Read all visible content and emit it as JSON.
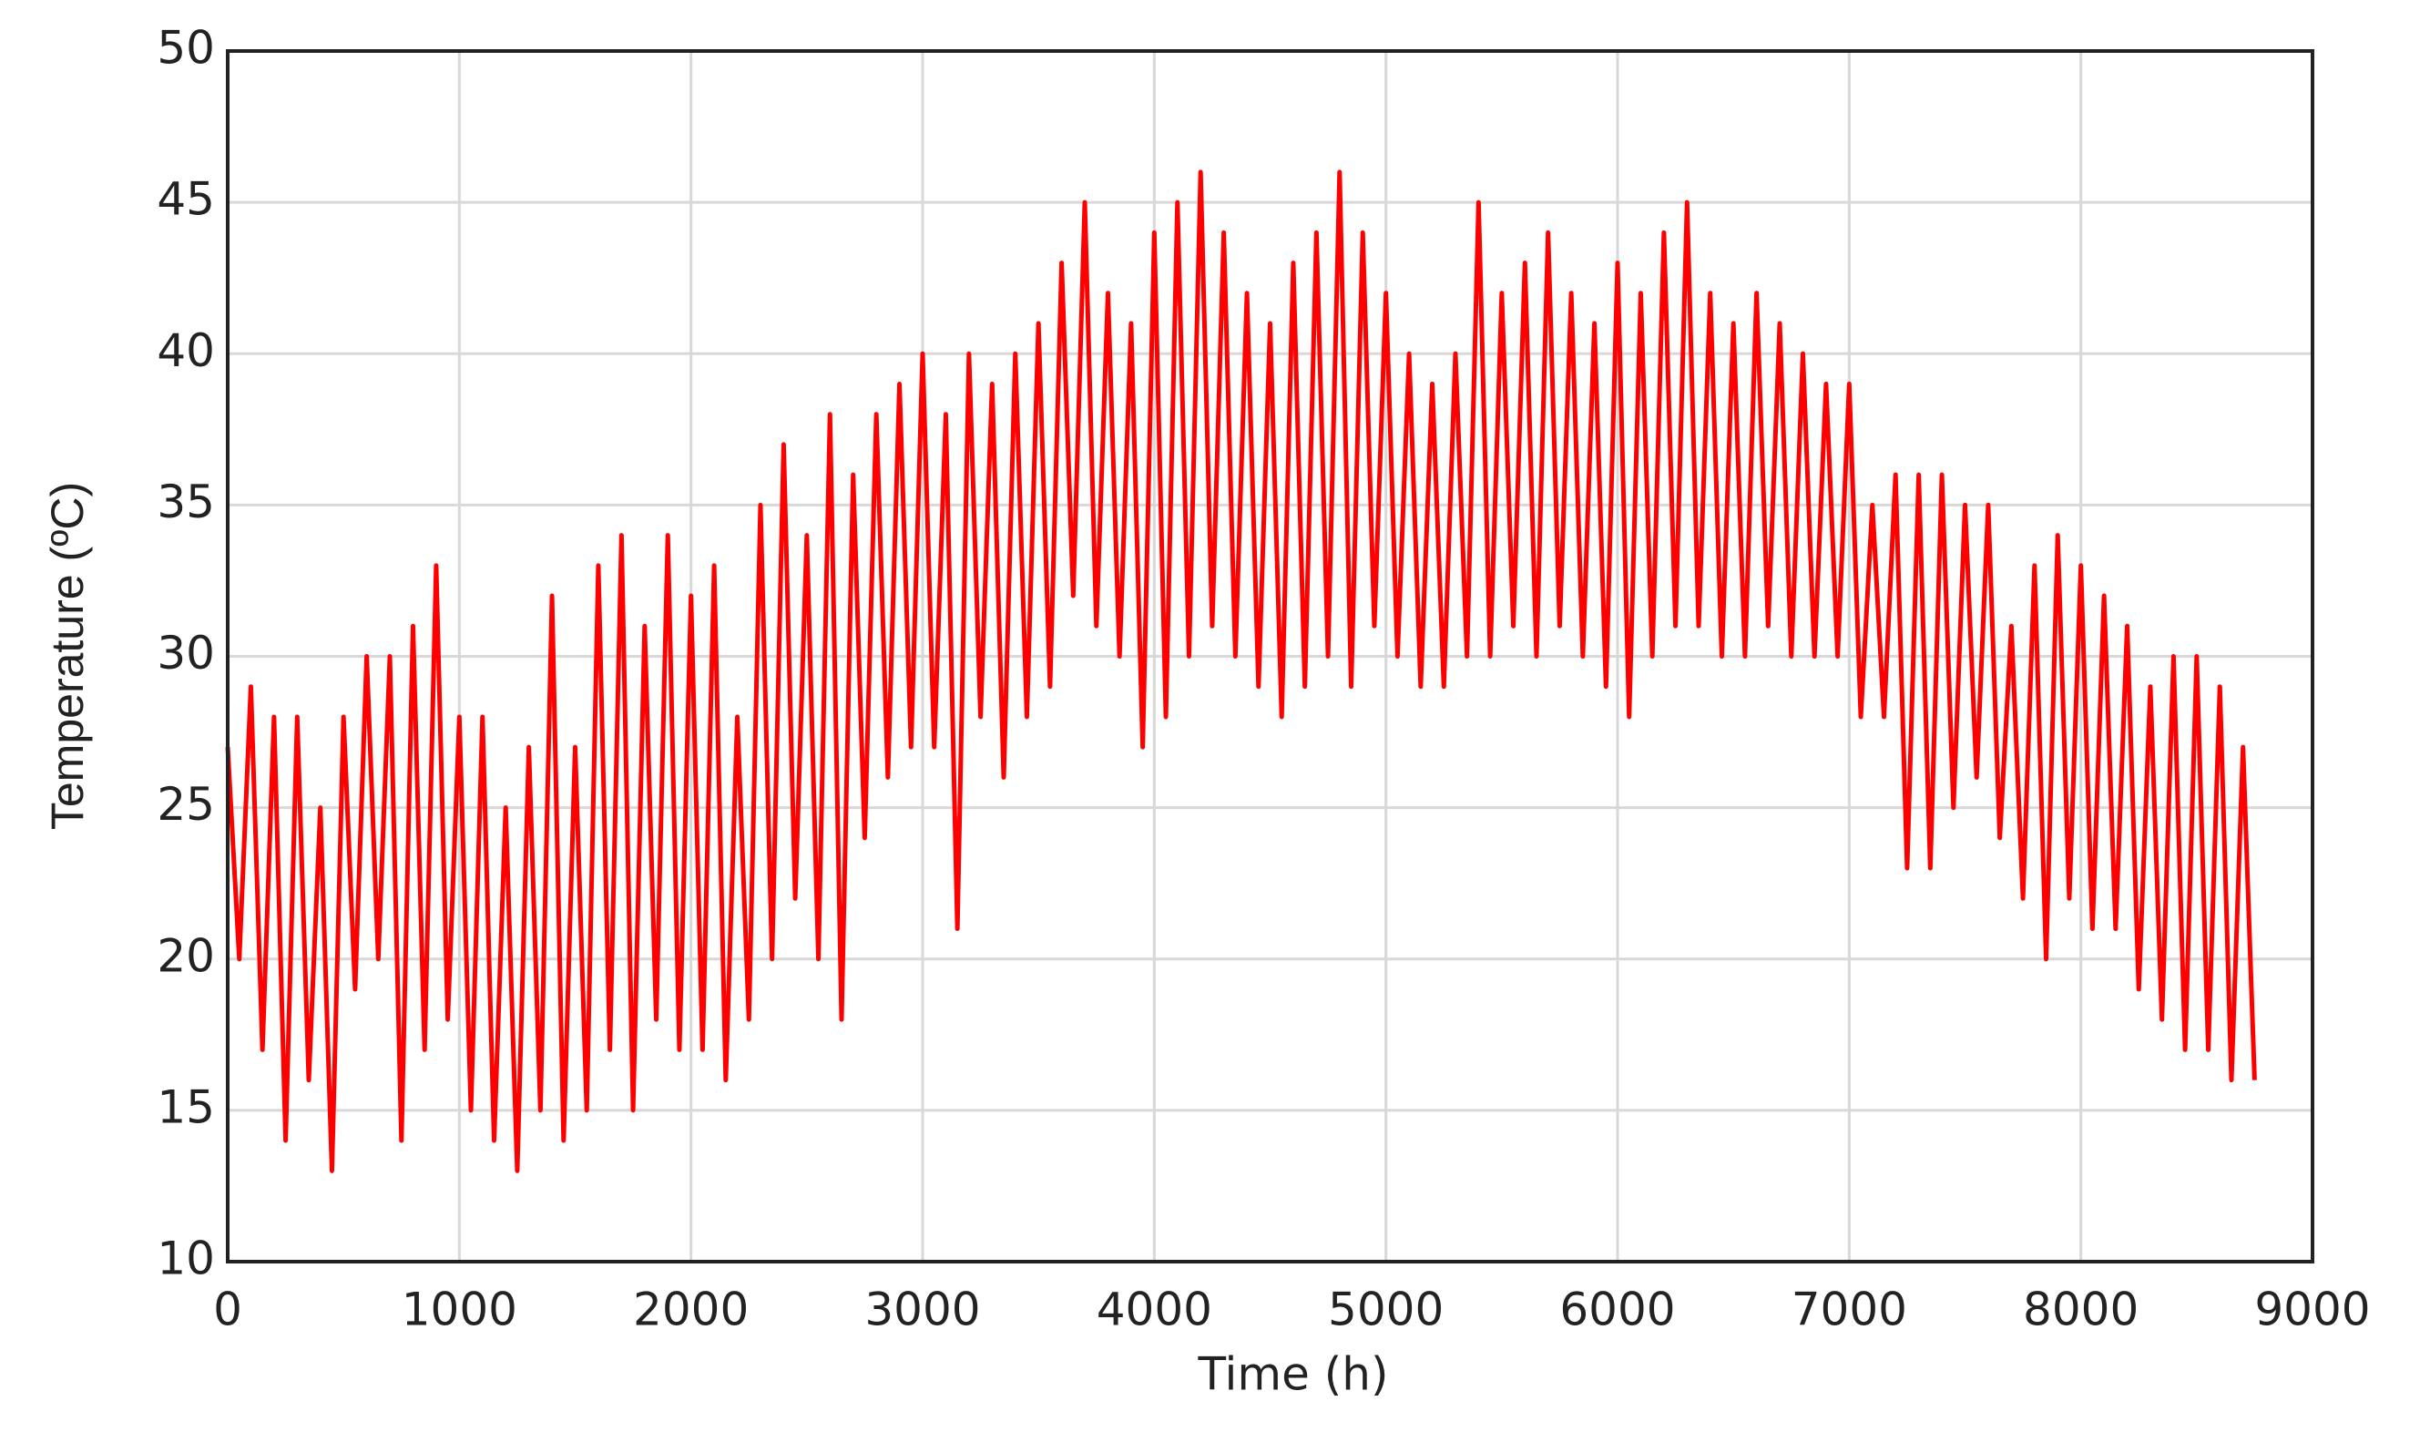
{
  "chart_data": {
    "type": "line",
    "x_label": "Time (h)",
    "y_label": "Temperature (ºC)",
    "xlim": [
      0,
      9000
    ],
    "xticks": [
      0,
      1000,
      2000,
      3000,
      4000,
      5000,
      6000,
      7000,
      8000,
      9000
    ],
    "ylim": [
      10,
      50
    ],
    "yticks": [
      10,
      15,
      20,
      25,
      30,
      35,
      40,
      45,
      50
    ],
    "grid": true,
    "x": [
      0,
      50,
      100,
      150,
      200,
      250,
      300,
      350,
      400,
      450,
      500,
      550,
      600,
      650,
      700,
      750,
      800,
      850,
      900,
      950,
      1000,
      1050,
      1100,
      1150,
      1200,
      1250,
      1300,
      1350,
      1400,
      1450,
      1500,
      1550,
      1600,
      1650,
      1700,
      1750,
      1800,
      1850,
      1900,
      1950,
      2000,
      2050,
      2100,
      2150,
      2200,
      2250,
      2300,
      2350,
      2400,
      2450,
      2500,
      2550,
      2600,
      2650,
      2700,
      2750,
      2800,
      2850,
      2900,
      2950,
      3000,
      3050,
      3100,
      3150,
      3200,
      3250,
      3300,
      3350,
      3400,
      3450,
      3500,
      3550,
      3600,
      3650,
      3700,
      3750,
      3800,
      3850,
      3900,
      3950,
      4000,
      4050,
      4100,
      4150,
      4200,
      4250,
      4300,
      4350,
      4400,
      4450,
      4500,
      4550,
      4600,
      4650,
      4700,
      4750,
      4800,
      4850,
      4900,
      4950,
      5000,
      5050,
      5100,
      5150,
      5200,
      5250,
      5300,
      5350,
      5400,
      5450,
      5500,
      5550,
      5600,
      5650,
      5700,
      5750,
      5800,
      5850,
      5900,
      5950,
      6000,
      6050,
      6100,
      6150,
      6200,
      6250,
      6300,
      6350,
      6400,
      6450,
      6500,
      6550,
      6600,
      6650,
      6700,
      6750,
      6800,
      6850,
      6900,
      6950,
      7000,
      7050,
      7100,
      7150,
      7200,
      7250,
      7300,
      7350,
      7400,
      7450,
      7500,
      7550,
      7600,
      7650,
      7700,
      7750,
      7800,
      7850,
      7900,
      7950,
      8000,
      8050,
      8100,
      8150,
      8200,
      8250,
      8300,
      8350,
      8400,
      8450,
      8500,
      8550,
      8600,
      8650,
      8700,
      8750
    ],
    "series": [
      {
        "color": "#ff0000",
        "values": [
          27,
          20,
          29,
          17,
          28,
          14,
          28,
          16,
          25,
          13,
          28,
          19,
          30,
          20,
          30,
          14,
          31,
          17,
          33,
          18,
          28,
          15,
          28,
          14,
          25,
          13,
          27,
          15,
          32,
          14,
          27,
          15,
          33,
          17,
          34,
          15,
          31,
          18,
          34,
          17,
          32,
          17,
          33,
          16,
          28,
          18,
          35,
          20,
          37,
          22,
          34,
          20,
          38,
          18,
          36,
          24,
          38,
          26,
          39,
          27,
          40,
          27,
          38,
          21,
          40,
          28,
          39,
          26,
          40,
          28,
          41,
          29,
          43,
          32,
          45,
          31,
          42,
          30,
          41,
          27,
          44,
          28,
          45,
          30,
          46,
          31,
          44,
          30,
          42,
          29,
          41,
          28,
          43,
          29,
          44,
          30,
          46,
          29,
          44,
          31,
          42,
          30,
          40,
          29,
          39,
          29,
          40,
          30,
          45,
          30,
          42,
          31,
          43,
          30,
          44,
          31,
          42,
          30,
          41,
          29,
          43,
          28,
          42,
          30,
          44,
          31,
          45,
          31,
          42,
          30,
          41,
          30,
          42,
          31,
          41,
          30,
          40,
          30,
          39,
          30,
          39,
          28,
          35,
          28,
          36,
          23,
          36,
          23,
          36,
          25,
          35,
          26,
          35,
          24,
          31,
          22,
          33,
          20,
          34,
          22,
          33,
          21,
          32,
          21,
          31,
          19,
          29,
          18,
          30,
          17,
          30,
          17,
          29,
          16,
          27,
          16
        ]
      }
    ]
  }
}
